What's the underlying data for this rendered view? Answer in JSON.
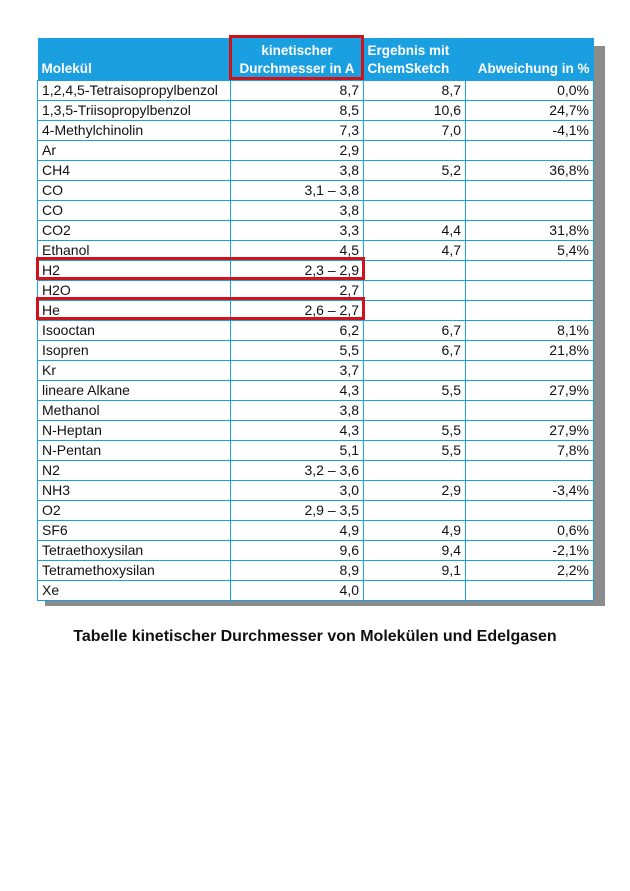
{
  "table": {
    "headers": [
      "Molekül",
      "kinetischer Durchmesser in A",
      "Ergebnis mit ChemSketch",
      "Abweichung in %"
    ],
    "header_lines": {
      "col2": [
        "kinetischer",
        "Durchmesser in A"
      ],
      "col3": [
        "Ergebnis mit",
        "ChemSketch"
      ]
    },
    "rows": [
      [
        "1,2,4,5-Tetraisopropylbenzol",
        "8,7",
        "8,7",
        "0,0%"
      ],
      [
        "1,3,5-Triisopropylbenzol",
        "8,5",
        "10,6",
        "24,7%"
      ],
      [
        "4-Methylchinolin",
        "7,3",
        "7,0",
        "-4,1%"
      ],
      [
        "Ar",
        "2,9",
        "",
        ""
      ],
      [
        "CH4",
        "3,8",
        "5,2",
        "36,8%"
      ],
      [
        "CO",
        "3,1 – 3,8",
        "",
        ""
      ],
      [
        "CO",
        "3,8",
        "",
        ""
      ],
      [
        "CO2",
        "3,3",
        "4,4",
        "31,8%"
      ],
      [
        "Ethanol",
        "4,5",
        "4,7",
        "5,4%"
      ],
      [
        "H2",
        "2,3 – 2,9",
        "",
        ""
      ],
      [
        "H2O",
        "2,7",
        "",
        ""
      ],
      [
        "He",
        "2,6 – 2,7",
        "",
        ""
      ],
      [
        "Isooctan",
        "6,2",
        "6,7",
        "8,1%"
      ],
      [
        "Isopren",
        "5,5",
        "6,7",
        "21,8%"
      ],
      [
        "Kr",
        "3,7",
        "",
        ""
      ],
      [
        "lineare Alkane",
        "4,3",
        "5,5",
        "27,9%"
      ],
      [
        "Methanol",
        "3,8",
        "",
        ""
      ],
      [
        "N-Heptan",
        "4,3",
        "5,5",
        "27,9%"
      ],
      [
        "N-Pentan",
        "5,1",
        "5,5",
        "7,8%"
      ],
      [
        "N2",
        "3,2 – 3,6",
        "",
        ""
      ],
      [
        "NH3",
        "3,0",
        "2,9",
        "-3,4%"
      ],
      [
        "O2",
        "2,9 – 3,5",
        "",
        ""
      ],
      [
        "SF6",
        "4,9",
        "4,9",
        "0,6%"
      ],
      [
        "Tetraethoxysilan",
        "9,6",
        "9,4",
        "-2,1%"
      ],
      [
        "Tetramethoxysilan",
        "8,9",
        "9,1",
        "2,2%"
      ],
      [
        "Xe",
        "4,0",
        "",
        ""
      ]
    ],
    "highlighted_rows": [
      "H2",
      "He"
    ]
  },
  "caption": "Tabelle kinetischer Durchmesser von Molekülen und Edelgasen",
  "colors": {
    "header": "#1a9fe0",
    "highlight": "#d0121b",
    "shadow": "#8c8c8c"
  }
}
